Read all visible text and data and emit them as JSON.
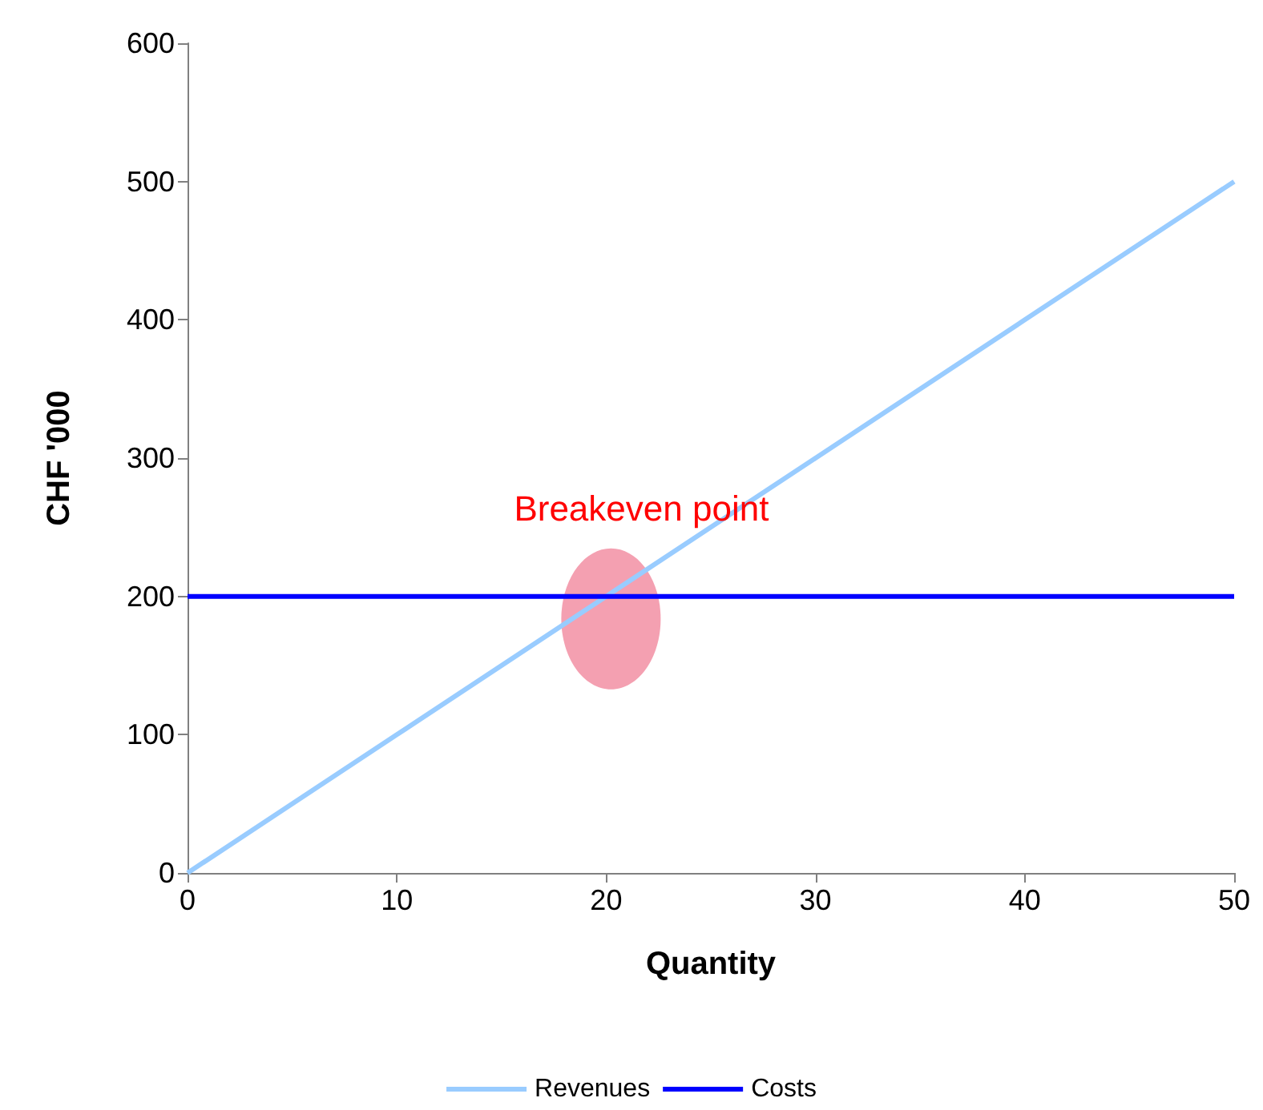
{
  "chart_data": {
    "type": "line",
    "xlabel": "Quantity",
    "ylabel": "CHF '000",
    "x": [
      0,
      10,
      20,
      30,
      40,
      50
    ],
    "series": [
      {
        "name": "Revenues",
        "color": "#99ccff",
        "values": [
          0,
          100,
          200,
          300,
          400,
          500
        ]
      },
      {
        "name": "Costs",
        "color": "#0000ff",
        "values": [
          200,
          200,
          200,
          200,
          200,
          200
        ]
      }
    ],
    "xlim": [
      0,
      50
    ],
    "xticks": [
      0,
      10,
      20,
      30,
      40,
      50
    ],
    "ylim": [
      0,
      600
    ],
    "yticks": [
      0,
      100,
      200,
      300,
      400,
      500,
      600
    ],
    "annotations": [
      {
        "text": "Breakeven point",
        "x": 20,
        "y": 200
      }
    ],
    "grid": false,
    "legend": "bottom",
    "marker": "none",
    "line_style": "solid"
  }
}
